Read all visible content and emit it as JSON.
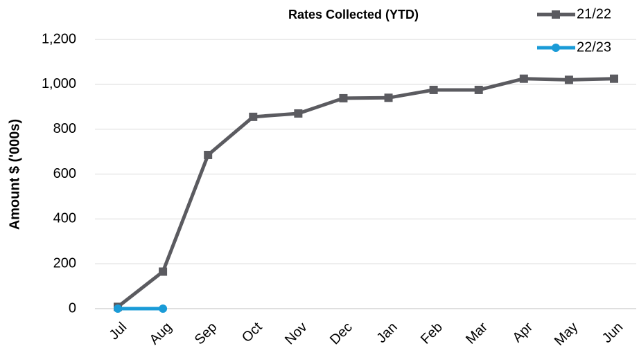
{
  "chart_data": {
    "type": "line",
    "title": "Rates Collected (YTD)",
    "y_label": "Amount $ ('000s)",
    "categories": [
      "Jul",
      "Aug",
      "Sep",
      "Oct",
      "Nov",
      "Dec",
      "Jan",
      "Feb",
      "Mar",
      "Apr",
      "May",
      "Jun"
    ],
    "series": [
      {
        "name": "21/22",
        "color": "#5b5b60",
        "marker": "square",
        "values": [
          8,
          165,
          685,
          855,
          870,
          938,
          940,
          975,
          975,
          1025,
          1020,
          1025
        ]
      },
      {
        "name": "22/23",
        "color": "#1a9bd7",
        "marker": "circle",
        "values": [
          0,
          0,
          null,
          null,
          null,
          null,
          null,
          null,
          null,
          null,
          null,
          null
        ]
      }
    ],
    "ylim": [
      0,
      1200
    ],
    "yticks": [
      0,
      200,
      400,
      600,
      800,
      {
        "value": 1000,
        "label": "1,000"
      },
      {
        "value": 1200,
        "label": "1,200"
      }
    ],
    "grid": true,
    "legend": "top-right"
  }
}
